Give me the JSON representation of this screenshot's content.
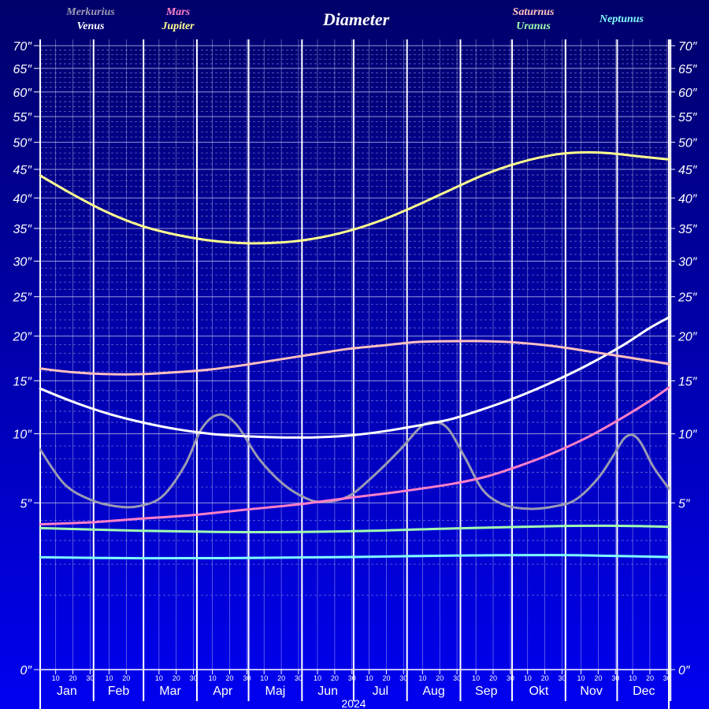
{
  "chart_data": {
    "type": "line",
    "title": "Diameter",
    "year_label": "2024",
    "months": [
      "Jan",
      "Feb",
      "Mar",
      "Apr",
      "Maj",
      "Jun",
      "Jul",
      "Aug",
      "Sep",
      "Okt",
      "Nov",
      "Dec"
    ],
    "day_ticks": [
      "10",
      "20",
      "30"
    ],
    "y_ticks": [
      {
        "v": 0,
        "label": "0″"
      },
      {
        "v": 5,
        "label": "5″"
      },
      {
        "v": 10,
        "label": "10″"
      },
      {
        "v": 15,
        "label": "15″"
      },
      {
        "v": 20,
        "label": "20″"
      },
      {
        "v": 25,
        "label": "25″"
      },
      {
        "v": 30,
        "label": "30″"
      },
      {
        "v": 35,
        "label": "35″"
      },
      {
        "v": 40,
        "label": "40″"
      },
      {
        "v": 45,
        "label": "45″"
      },
      {
        "v": 50,
        "label": "50″"
      },
      {
        "v": 55,
        "label": "55″"
      },
      {
        "v": 60,
        "label": "60″"
      },
      {
        "v": 65,
        "label": "65″"
      },
      {
        "v": 70,
        "label": "70″"
      }
    ],
    "y_scale": "sqrt",
    "ylim": [
      0,
      70
    ],
    "x_unit": "day of year",
    "xlim": [
      1,
      366
    ],
    "grid": true,
    "series": [
      {
        "name": "Merkurius",
        "color": "#9a9ab4",
        "points": [
          [
            1,
            8.7
          ],
          [
            15,
            6.2
          ],
          [
            30,
            5.2
          ],
          [
            45,
            4.8
          ],
          [
            58,
            4.8
          ],
          [
            72,
            5.4
          ],
          [
            85,
            7.5
          ],
          [
            95,
            10.5
          ],
          [
            105,
            11.7
          ],
          [
            115,
            10.8
          ],
          [
            128,
            8.0
          ],
          [
            142,
            6.2
          ],
          [
            155,
            5.3
          ],
          [
            165,
            5.05
          ],
          [
            180,
            5.4
          ],
          [
            195,
            6.8
          ],
          [
            210,
            8.7
          ],
          [
            222,
            10.6
          ],
          [
            230,
            11.0
          ],
          [
            238,
            10.4
          ],
          [
            248,
            8.0
          ],
          [
            258,
            5.8
          ],
          [
            270,
            4.9
          ],
          [
            285,
            4.65
          ],
          [
            300,
            4.8
          ],
          [
            312,
            5.2
          ],
          [
            325,
            6.6
          ],
          [
            335,
            8.5
          ],
          [
            340,
            9.6
          ],
          [
            345,
            9.9
          ],
          [
            350,
            9.2
          ],
          [
            357,
            7.4
          ],
          [
            366,
            5.9
          ]
        ]
      },
      {
        "name": "Venus",
        "color": "#ffffff",
        "points": [
          [
            1,
            14.2
          ],
          [
            20,
            12.9
          ],
          [
            40,
            11.8
          ],
          [
            60,
            11.0
          ],
          [
            80,
            10.4
          ],
          [
            100,
            10.0
          ],
          [
            120,
            9.8
          ],
          [
            140,
            9.7
          ],
          [
            160,
            9.7
          ],
          [
            180,
            9.85
          ],
          [
            200,
            10.2
          ],
          [
            220,
            10.7
          ],
          [
            240,
            11.3
          ],
          [
            260,
            12.3
          ],
          [
            280,
            13.5
          ],
          [
            300,
            15.0
          ],
          [
            320,
            16.8
          ],
          [
            340,
            19.0
          ],
          [
            355,
            21.0
          ],
          [
            366,
            22.3
          ]
        ]
      },
      {
        "name": "Mars",
        "color": "#ff80c8",
        "points": [
          [
            1,
            3.8
          ],
          [
            30,
            3.9
          ],
          [
            60,
            4.1
          ],
          [
            90,
            4.3
          ],
          [
            120,
            4.6
          ],
          [
            150,
            4.9
          ],
          [
            180,
            5.3
          ],
          [
            210,
            5.7
          ],
          [
            240,
            6.2
          ],
          [
            260,
            6.7
          ],
          [
            280,
            7.5
          ],
          [
            300,
            8.5
          ],
          [
            320,
            9.8
          ],
          [
            340,
            11.5
          ],
          [
            355,
            13.0
          ],
          [
            366,
            14.3
          ]
        ]
      },
      {
        "name": "Jupiter",
        "color": "#ffff90",
        "points": [
          [
            1,
            43.9
          ],
          [
            20,
            40.6
          ],
          [
            40,
            37.6
          ],
          [
            60,
            35.4
          ],
          [
            80,
            34.0
          ],
          [
            100,
            33.1
          ],
          [
            120,
            32.7
          ],
          [
            140,
            32.8
          ],
          [
            160,
            33.4
          ],
          [
            180,
            34.6
          ],
          [
            200,
            36.4
          ],
          [
            220,
            38.8
          ],
          [
            240,
            41.5
          ],
          [
            260,
            44.2
          ],
          [
            280,
            46.3
          ],
          [
            300,
            47.7
          ],
          [
            315,
            48.1
          ],
          [
            330,
            48.0
          ],
          [
            345,
            47.5
          ],
          [
            366,
            46.8
          ]
        ]
      },
      {
        "name": "Saturnus",
        "color": "#ffc0c0",
        "points": [
          [
            1,
            16.3
          ],
          [
            20,
            15.9
          ],
          [
            40,
            15.7
          ],
          [
            60,
            15.7
          ],
          [
            80,
            15.9
          ],
          [
            100,
            16.2
          ],
          [
            120,
            16.7
          ],
          [
            140,
            17.3
          ],
          [
            160,
            17.9
          ],
          [
            180,
            18.5
          ],
          [
            200,
            18.9
          ],
          [
            220,
            19.3
          ],
          [
            240,
            19.4
          ],
          [
            260,
            19.4
          ],
          [
            280,
            19.2
          ],
          [
            300,
            18.8
          ],
          [
            320,
            18.2
          ],
          [
            340,
            17.6
          ],
          [
            366,
            16.8
          ]
        ]
      },
      {
        "name": "Uranus",
        "color": "#a0ffb0",
        "points": [
          [
            1,
            3.6
          ],
          [
            60,
            3.47
          ],
          [
            120,
            3.4
          ],
          [
            180,
            3.44
          ],
          [
            240,
            3.58
          ],
          [
            300,
            3.7
          ],
          [
            330,
            3.72
          ],
          [
            366,
            3.67
          ]
        ]
      },
      {
        "name": "Neptunus",
        "color": "#80ffff",
        "points": [
          [
            1,
            2.27
          ],
          [
            60,
            2.23
          ],
          [
            120,
            2.24
          ],
          [
            180,
            2.28
          ],
          [
            240,
            2.34
          ],
          [
            300,
            2.36
          ],
          [
            330,
            2.33
          ],
          [
            366,
            2.28
          ]
        ]
      }
    ]
  }
}
